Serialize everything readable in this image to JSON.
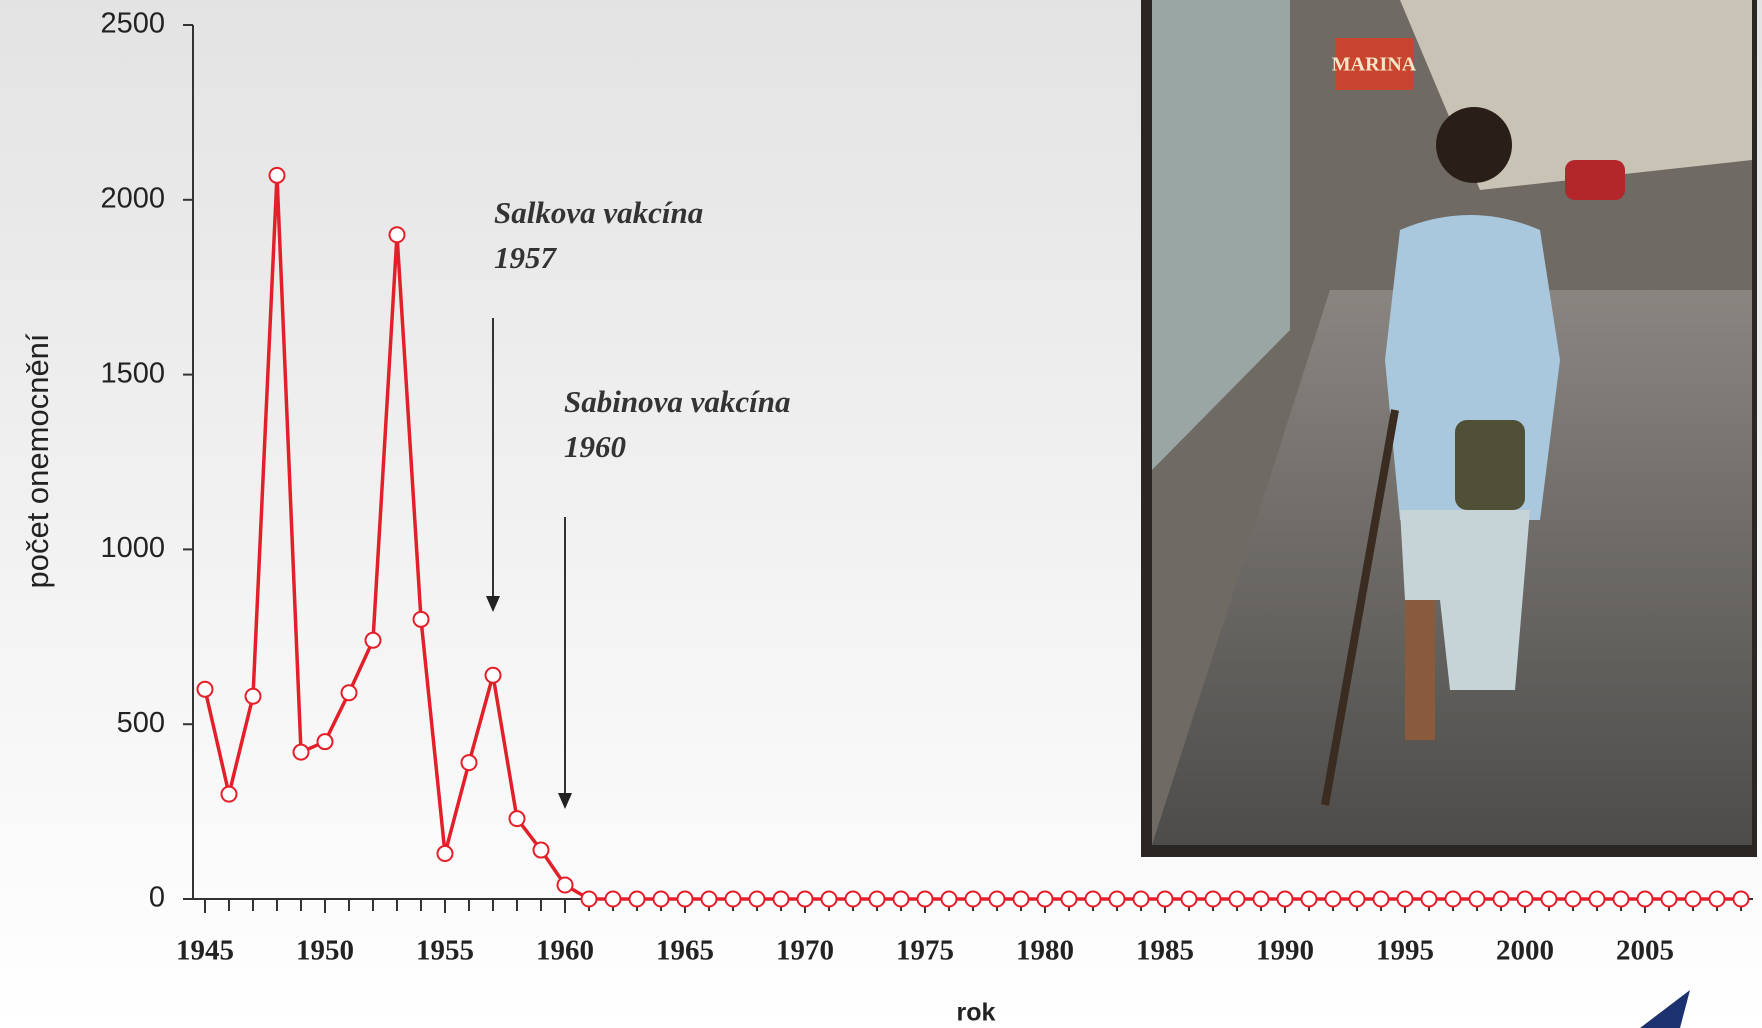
{
  "chart_data": {
    "type": "line",
    "y_label": "počet onemocnění",
    "x_label": "rok",
    "x": [
      1945,
      1946,
      1947,
      1948,
      1949,
      1950,
      1951,
      1952,
      1953,
      1954,
      1955,
      1956,
      1957,
      1958,
      1959,
      1960,
      1961,
      1962,
      1963,
      1964,
      1965,
      1966,
      1967,
      1968,
      1969,
      1970,
      1971,
      1972,
      1973,
      1974,
      1975,
      1976,
      1977,
      1978,
      1979,
      1980,
      1981,
      1982,
      1983,
      1984,
      1985,
      1986,
      1987,
      1988,
      1989,
      1990,
      1991,
      1992,
      1993,
      1994,
      1995,
      1996,
      1997,
      1998,
      1999,
      2000,
      2001,
      2002,
      2003,
      2004,
      2005,
      2006,
      2007,
      2008,
      2009
    ],
    "values": [
      600,
      300,
      580,
      2070,
      420,
      450,
      590,
      740,
      1900,
      800,
      130,
      390,
      640,
      230,
      140,
      40,
      0,
      0,
      0,
      0,
      0,
      0,
      0,
      0,
      0,
      0,
      0,
      0,
      0,
      0,
      0,
      0,
      0,
      0,
      0,
      0,
      0,
      0,
      0,
      0,
      0,
      0,
      0,
      0,
      0,
      0,
      0,
      0,
      0,
      0,
      0,
      0,
      0,
      0,
      0,
      0,
      0,
      0,
      0,
      0,
      0,
      0,
      0,
      0,
      0
    ],
    "color": "#e3202a",
    "xlim": [
      1944.5,
      2009.5
    ],
    "xticks": [
      1945,
      1950,
      1955,
      1960,
      1965,
      1970,
      1975,
      1980,
      1985,
      1990,
      1995,
      2000,
      2005
    ],
    "ylim": [
      0,
      2500
    ],
    "yticks": [
      0,
      500,
      1000,
      1500,
      2000,
      2500
    ],
    "annotations": [
      [
        "Salkova vakcína",
        "1957"
      ],
      [
        "Sabinova vakcína",
        "1960"
      ]
    ]
  },
  "photo": {
    "sign_text": "MARINA"
  }
}
